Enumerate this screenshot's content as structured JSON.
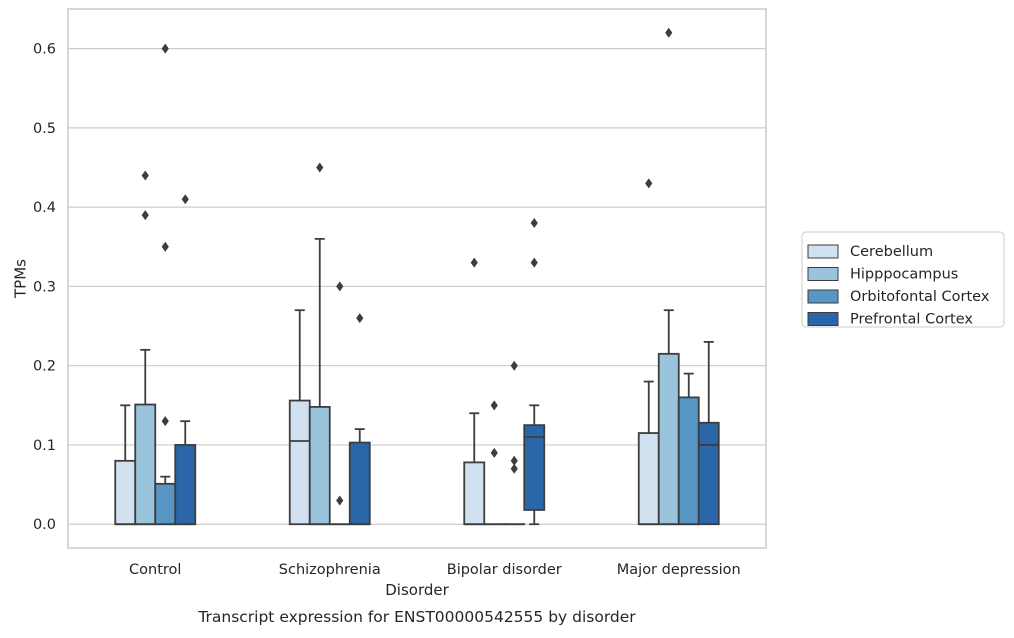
{
  "chart_data": {
    "type": "box",
    "title": "",
    "caption": "Transcript expression for ENST00000542555 by disorder",
    "xlabel": "Disorder",
    "ylabel": "TPMs",
    "ylim": [
      -0.03,
      0.65
    ],
    "yticks": [
      0.0,
      0.1,
      0.2,
      0.3,
      0.4,
      0.5,
      0.6
    ],
    "ytick_labels": [
      "0.0",
      "0.1",
      "0.2",
      "0.3",
      "0.4",
      "0.5",
      "0.6"
    ],
    "grid": "horizontal",
    "legend_position": "right",
    "categories": [
      "Control",
      "Schizophrenia",
      "Bipolar disorder",
      "Major depression"
    ],
    "series": [
      {
        "name": "Cerebellum",
        "color": "#d1e1f0",
        "boxes": [
          {
            "q1": 0.0,
            "median": 0.0,
            "q3": 0.08,
            "whisker_low": 0.0,
            "whisker_high": 0.15,
            "outliers": []
          },
          {
            "q1": 0.0,
            "median": 0.105,
            "q3": 0.156,
            "whisker_low": 0.0,
            "whisker_high": 0.27,
            "outliers": []
          },
          {
            "q1": 0.0,
            "median": 0.0,
            "q3": 0.078,
            "whisker_low": 0.0,
            "whisker_high": 0.14,
            "outliers": [
              0.33
            ]
          },
          {
            "q1": 0.0,
            "median": 0.0,
            "q3": 0.115,
            "whisker_low": 0.0,
            "whisker_high": 0.18,
            "outliers": [
              0.43
            ]
          }
        ]
      },
      {
        "name": "Hipppocampus",
        "color": "#9ac3dc",
        "boxes": [
          {
            "q1": 0.0,
            "median": 0.0,
            "q3": 0.151,
            "whisker_low": 0.0,
            "whisker_high": 0.22,
            "outliers": [
              0.39,
              0.44
            ]
          },
          {
            "q1": 0.0,
            "median": 0.0,
            "q3": 0.148,
            "whisker_low": 0.0,
            "whisker_high": 0.36,
            "outliers": [
              0.45
            ]
          },
          {
            "q1": 0.0,
            "median": 0.0,
            "q3": 0.0,
            "whisker_low": 0.0,
            "whisker_high": 0.0,
            "outliers": [
              0.09,
              0.15
            ]
          },
          {
            "q1": 0.0,
            "median": 0.0,
            "q3": 0.215,
            "whisker_low": 0.0,
            "whisker_high": 0.27,
            "outliers": [
              0.62
            ]
          }
        ]
      },
      {
        "name": "Orbitofontal Cortex",
        "color": "#5896c5",
        "boxes": [
          {
            "q1": 0.0,
            "median": 0.0,
            "q3": 0.051,
            "whisker_low": 0.0,
            "whisker_high": 0.06,
            "outliers": [
              0.13,
              0.35,
              0.6
            ]
          },
          {
            "q1": 0.0,
            "median": 0.0,
            "q3": 0.0,
            "whisker_low": 0.0,
            "whisker_high": 0.0,
            "outliers": [
              0.03,
              0.3
            ]
          },
          {
            "q1": 0.0,
            "median": 0.0,
            "q3": 0.0,
            "whisker_low": 0.0,
            "whisker_high": 0.0,
            "outliers": [
              0.07,
              0.08,
              0.2
            ]
          },
          {
            "q1": 0.0,
            "median": 0.0,
            "q3": 0.16,
            "whisker_low": 0.0,
            "whisker_high": 0.19,
            "outliers": []
          }
        ]
      },
      {
        "name": "Prefrontal Cortex",
        "color": "#2b67a8",
        "boxes": [
          {
            "q1": 0.0,
            "median": 0.0,
            "q3": 0.1,
            "whisker_low": 0.0,
            "whisker_high": 0.13,
            "outliers": [
              0.41
            ]
          },
          {
            "q1": 0.0,
            "median": 0.0,
            "q3": 0.103,
            "whisker_low": 0.0,
            "whisker_high": 0.12,
            "outliers": [
              0.26
            ]
          },
          {
            "q1": 0.018,
            "median": 0.11,
            "q3": 0.125,
            "whisker_low": 0.0,
            "whisker_high": 0.15,
            "outliers": [
              0.33,
              0.38
            ]
          },
          {
            "q1": 0.0,
            "median": 0.1,
            "q3": 0.128,
            "whisker_low": 0.0,
            "whisker_high": 0.23,
            "outliers": []
          }
        ]
      }
    ]
  }
}
